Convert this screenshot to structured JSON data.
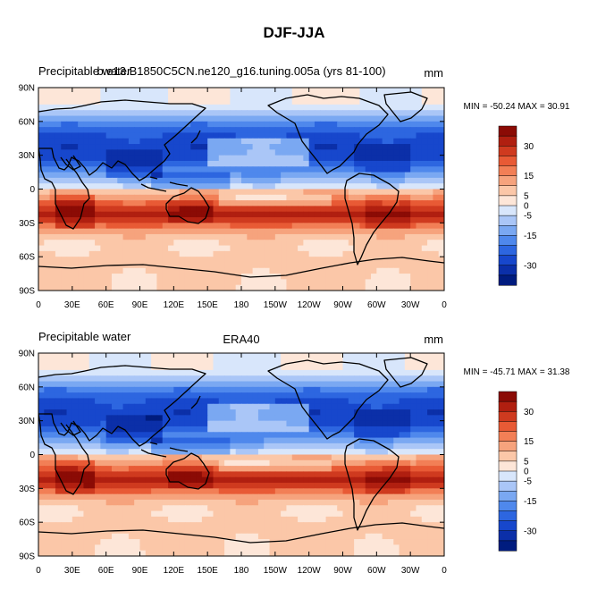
{
  "figure_title": "DJF-JJA",
  "colors": {
    "scale": [
      "#001c7f",
      "#0b2fa8",
      "#1747cc",
      "#2d66e0",
      "#4f88ec",
      "#7aa8f2",
      "#aac6f7",
      "#d8e6fb",
      "#fde6d8",
      "#fbc7a8",
      "#f6a37d",
      "#f27f56",
      "#e85a35",
      "#cf3a1f",
      "#b01f10",
      "#8b0b05"
    ],
    "land_outline": "#000000"
  },
  "chart_data": [
    {
      "type": "heatmap",
      "variable": "Precipitable water",
      "title_left": "Precipitable water",
      "title_center": "b.e13.B1850C5CN.ne120_g16.tuning.005a (yrs 81-100)",
      "units": "mm",
      "stats": "MIN = -50.24 MAX =  30.91",
      "min": -50.24,
      "max": 30.91,
      "lat_range": [
        -90,
        90
      ],
      "lon_range": [
        0,
        360
      ],
      "y_ticks": [
        "90N",
        "60N",
        "30N",
        "0",
        "30S",
        "60S",
        "90S"
      ],
      "x_ticks": [
        "0",
        "30E",
        "60E",
        "90E",
        "120E",
        "150E",
        "180",
        "150W",
        "120W",
        "90W",
        "60W",
        "30W",
        "0"
      ],
      "colorbar_levels": [
        -35,
        -30,
        -25,
        -20,
        -15,
        -10,
        -5,
        0,
        5,
        10,
        15,
        20,
        25,
        30,
        35
      ],
      "colorbar_labels": [
        "30",
        "15",
        "5",
        "0",
        "-5",
        "-15",
        "-30"
      ]
    },
    {
      "type": "heatmap",
      "variable": "Precipitable water",
      "title_left": "Precipitable water",
      "title_center": "ERA40",
      "units": "mm",
      "stats": "MIN = -45.71 MAX =  31.38",
      "min": -45.71,
      "max": 31.38,
      "lat_range": [
        -90,
        90
      ],
      "lon_range": [
        0,
        360
      ],
      "y_ticks": [
        "90N",
        "60N",
        "30N",
        "0",
        "30S",
        "60S",
        "90S"
      ],
      "x_ticks": [
        "0",
        "30E",
        "60E",
        "90E",
        "120E",
        "150E",
        "180",
        "150W",
        "120W",
        "90W",
        "60W",
        "30W",
        "0"
      ],
      "colorbar_levels": [
        -35,
        -30,
        -25,
        -20,
        -15,
        -10,
        -5,
        0,
        5,
        10,
        15,
        20,
        25,
        30,
        35
      ],
      "colorbar_labels": [
        "30",
        "15",
        "5",
        "0",
        "-5",
        "-15",
        "-30"
      ]
    }
  ]
}
